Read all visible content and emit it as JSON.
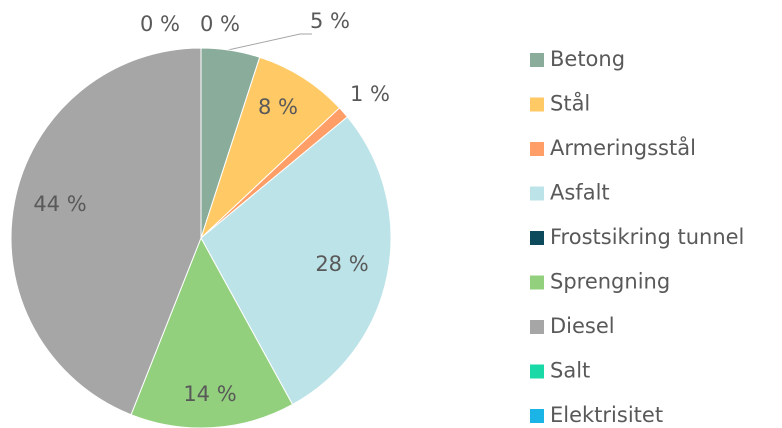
{
  "chart_data": {
    "type": "pie",
    "categories": [
      "Betong",
      "Stål",
      "Armeringsstål",
      "Asfalt",
      "Frostsikring tunnel",
      "Sprengning",
      "Diesel",
      "Salt",
      "Elektrisitet"
    ],
    "values": [
      5,
      8,
      1,
      28,
      0,
      14,
      44,
      0,
      0
    ],
    "value_labels": [
      "5 %",
      "8 %",
      "1 %",
      "28 %",
      null,
      "14 %",
      "44 %",
      "0 %",
      "0 %"
    ],
    "colors": [
      "#8aad9b",
      "#ffc966",
      "#ff9e66",
      "#bce3e8",
      "#0d4a5b",
      "#93d07e",
      "#a6a6a6",
      "#19d9a6",
      "#1ab5e6"
    ],
    "legend": "right"
  }
}
